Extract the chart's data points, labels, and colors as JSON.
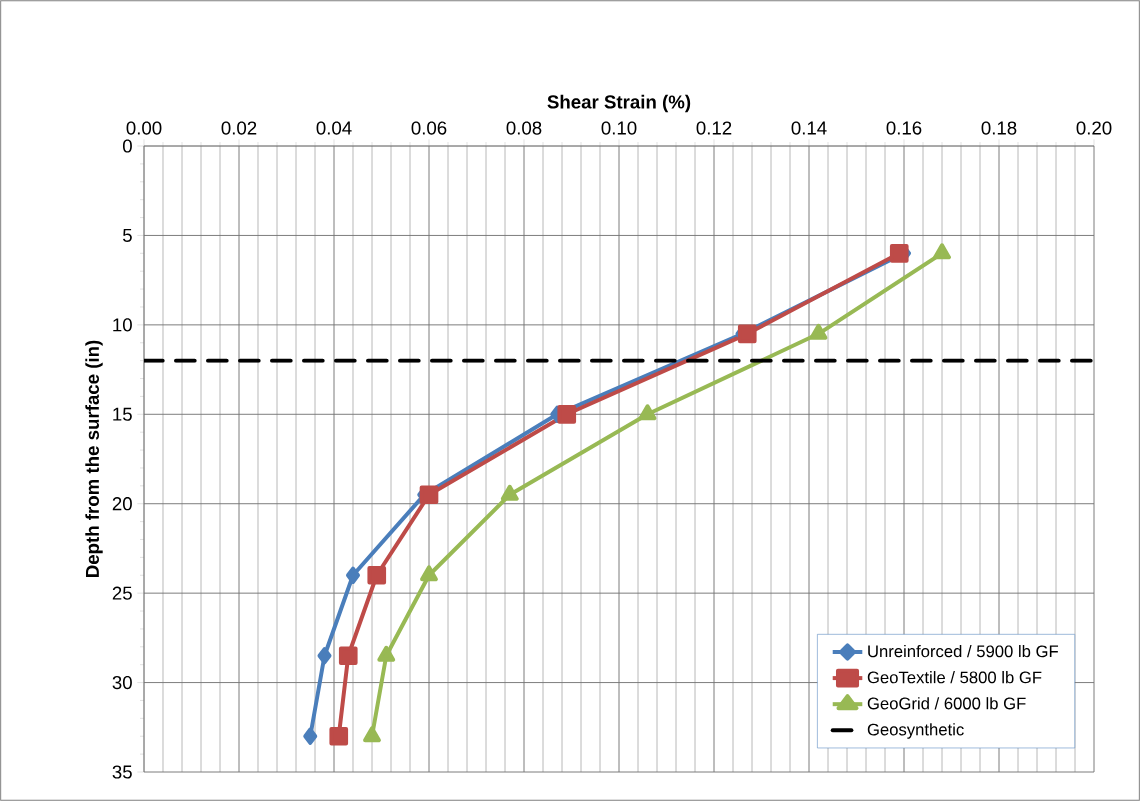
{
  "chart_data": {
    "type": "line",
    "xlabel": "Shear Strain (%)",
    "ylabel": "Depth from the surface (in)",
    "xlim": [
      0,
      0.2
    ],
    "xticks": [
      {
        "value": 0,
        "label": "0.00"
      },
      {
        "value": 0.02,
        "label": "0.02"
      },
      {
        "value": 0.04,
        "label": "0.04"
      },
      {
        "value": 0.06,
        "label": "0.06"
      },
      {
        "value": 0.08,
        "label": "0.08"
      },
      {
        "value": 0.1,
        "label": "0.10"
      },
      {
        "value": 0.12,
        "label": "0.12"
      },
      {
        "value": 0.14,
        "label": "0.14"
      },
      {
        "value": 0.16,
        "label": "0.16"
      },
      {
        "value": 0.18,
        "label": "0.18"
      },
      {
        "value": 0.2,
        "label": "0.20"
      }
    ],
    "ylim": [
      35,
      0
    ],
    "yticks": [
      0,
      5,
      10,
      15,
      20,
      25,
      30,
      35
    ],
    "grid": true,
    "legend": "bottom right",
    "series": [
      {
        "name": "Unreinforced / 5900 lb GF",
        "color": "#4a7ebb",
        "marker": "diamond",
        "x": [
          0.16,
          0.126,
          0.087,
          0.059,
          0.044,
          0.038,
          0.035
        ],
        "values": [
          6,
          10.5,
          15,
          19.5,
          24,
          28.5,
          33
        ]
      },
      {
        "name": "GeoTextile / 5800 lb GF",
        "color": "#be4b48",
        "marker": "square",
        "x": [
          0.159,
          0.127,
          0.089,
          0.06,
          0.049,
          0.043,
          0.041
        ],
        "values": [
          6,
          10.5,
          15,
          19.5,
          24,
          28.5,
          33
        ]
      },
      {
        "name": "GeoGrid / 6000 lb GF",
        "color": "#98b954",
        "marker": "triangle",
        "x": [
          0.168,
          0.142,
          0.106,
          0.077,
          0.06,
          0.051,
          0.048
        ],
        "values": [
          6,
          10.5,
          15,
          19.5,
          24,
          28.5,
          33
        ]
      }
    ],
    "ref_lines": [
      {
        "axis": "y",
        "value": 12,
        "label": "Geosynthetic",
        "color": "#000000",
        "line_style": "dashed"
      }
    ]
  }
}
